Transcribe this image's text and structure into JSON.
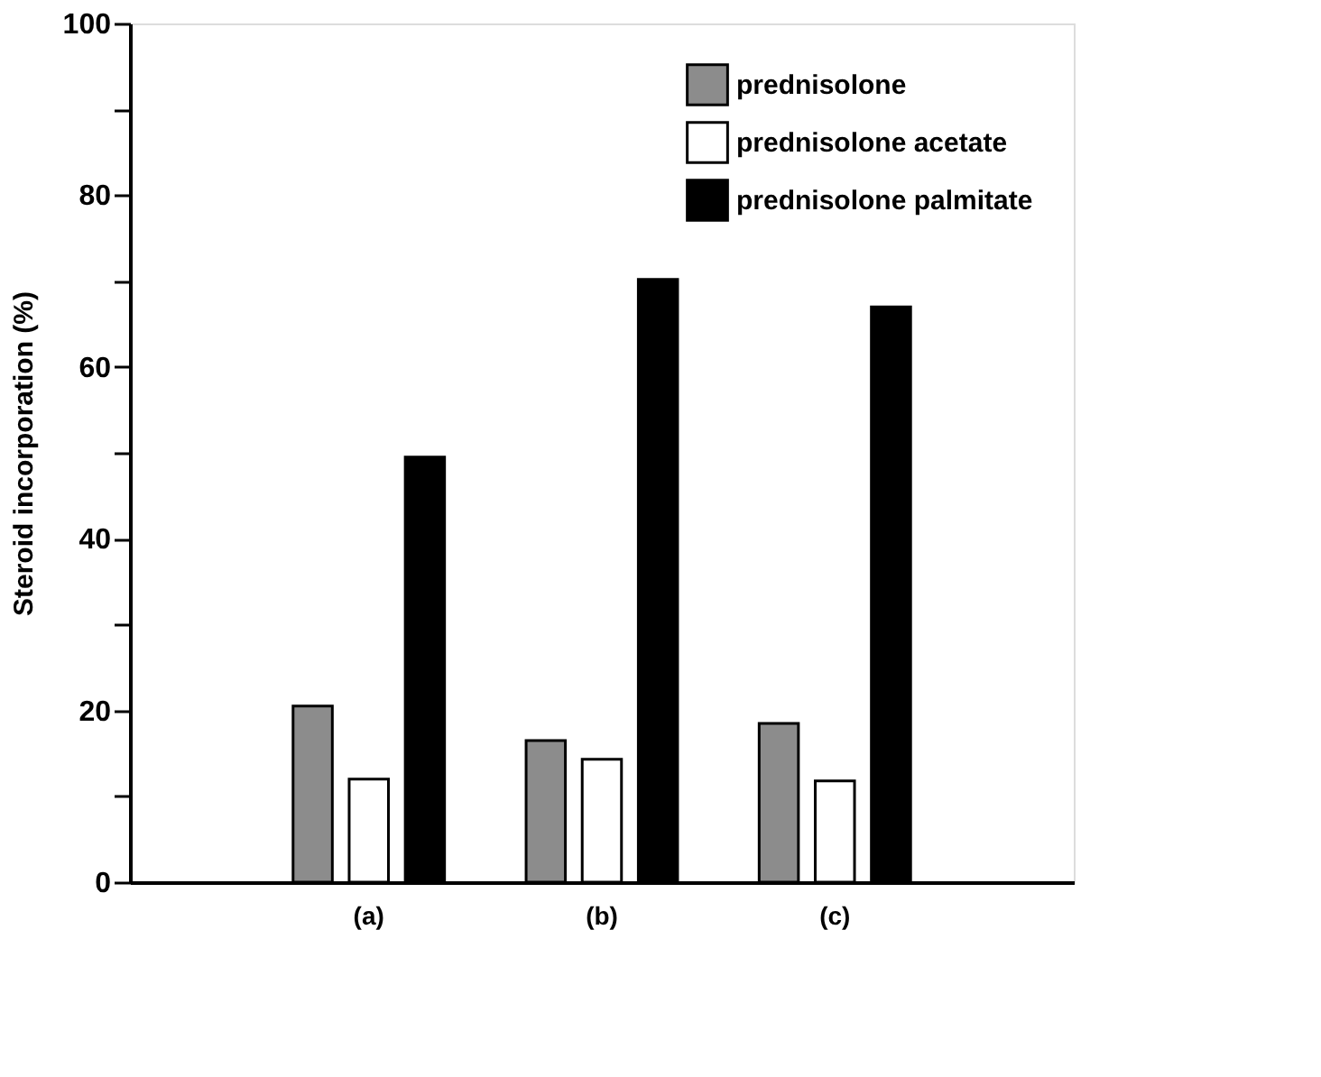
{
  "chart_data": {
    "type": "bar",
    "ylabel": "Steroid incorporation (%)",
    "categories": [
      "(a)",
      "(b)",
      "(c)"
    ],
    "series": [
      {
        "name": "prednisolone",
        "color": "#8c8c8c",
        "values": [
          20.5,
          16.5,
          18.5
        ]
      },
      {
        "name": "prednisolone acetate",
        "color": "#ffffff",
        "values": [
          12,
          14.3,
          11.8
        ]
      },
      {
        "name": "prednisolone palmitate",
        "color": "#000000",
        "values": [
          49.5,
          70.2,
          67
        ]
      }
    ],
    "ylim": [
      0,
      100
    ],
    "yticks": [
      0,
      {
        "value": 10,
        "label": null
      },
      20,
      {
        "value": 30,
        "label": null
      },
      40,
      {
        "value": 50,
        "label": null
      },
      60,
      {
        "value": 70,
        "label": null
      },
      80,
      {
        "value": 90,
        "label": null
      },
      100
    ],
    "grid": false,
    "legend": "top right"
  }
}
